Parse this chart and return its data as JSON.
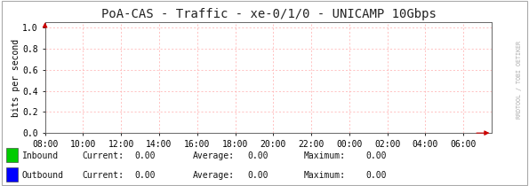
{
  "title": "PoA-CAS - Traffic - xe-0/1/0 - UNICAMP 10Gbps",
  "ylabel": "bits per second",
  "background_color": "#ffffff",
  "plot_bg_color": "#ffffff",
  "grid_color": "#ffaaaa",
  "x_ticks_labels": [
    "08:00",
    "10:00",
    "12:00",
    "14:00",
    "16:00",
    "18:00",
    "20:00",
    "22:00",
    "00:00",
    "02:00",
    "04:00",
    "06:00"
  ],
  "x_ticks_positions": [
    0,
    2,
    4,
    6,
    8,
    10,
    12,
    14,
    16,
    18,
    20,
    22
  ],
  "x_min": 0.0,
  "x_max": 23.5,
  "y_min": 0.0,
  "y_max": 1.05,
  "y_ticks": [
    0.0,
    0.2,
    0.4,
    0.6,
    0.8,
    1.0
  ],
  "title_fontsize": 10,
  "tick_fontsize": 7,
  "ylabel_fontsize": 7,
  "inbound_color": "#00cc00",
  "outbound_color": "#0000ff",
  "legend_items": [
    {
      "label": "Inbound",
      "color": "#00cc00"
    },
    {
      "label": "Outbound",
      "color": "#0000ff"
    }
  ],
  "legend_stats": [
    {
      "current": "0.00",
      "average": "0.00",
      "maximum": "0.00"
    },
    {
      "current": "0.00",
      "average": "0.00",
      "maximum": "0.00"
    }
  ],
  "arrow_color": "#cc0000",
  "watermark_text": "RRDTOOL / TOBI OETIKER",
  "watermark_color": "#aaaaaa"
}
